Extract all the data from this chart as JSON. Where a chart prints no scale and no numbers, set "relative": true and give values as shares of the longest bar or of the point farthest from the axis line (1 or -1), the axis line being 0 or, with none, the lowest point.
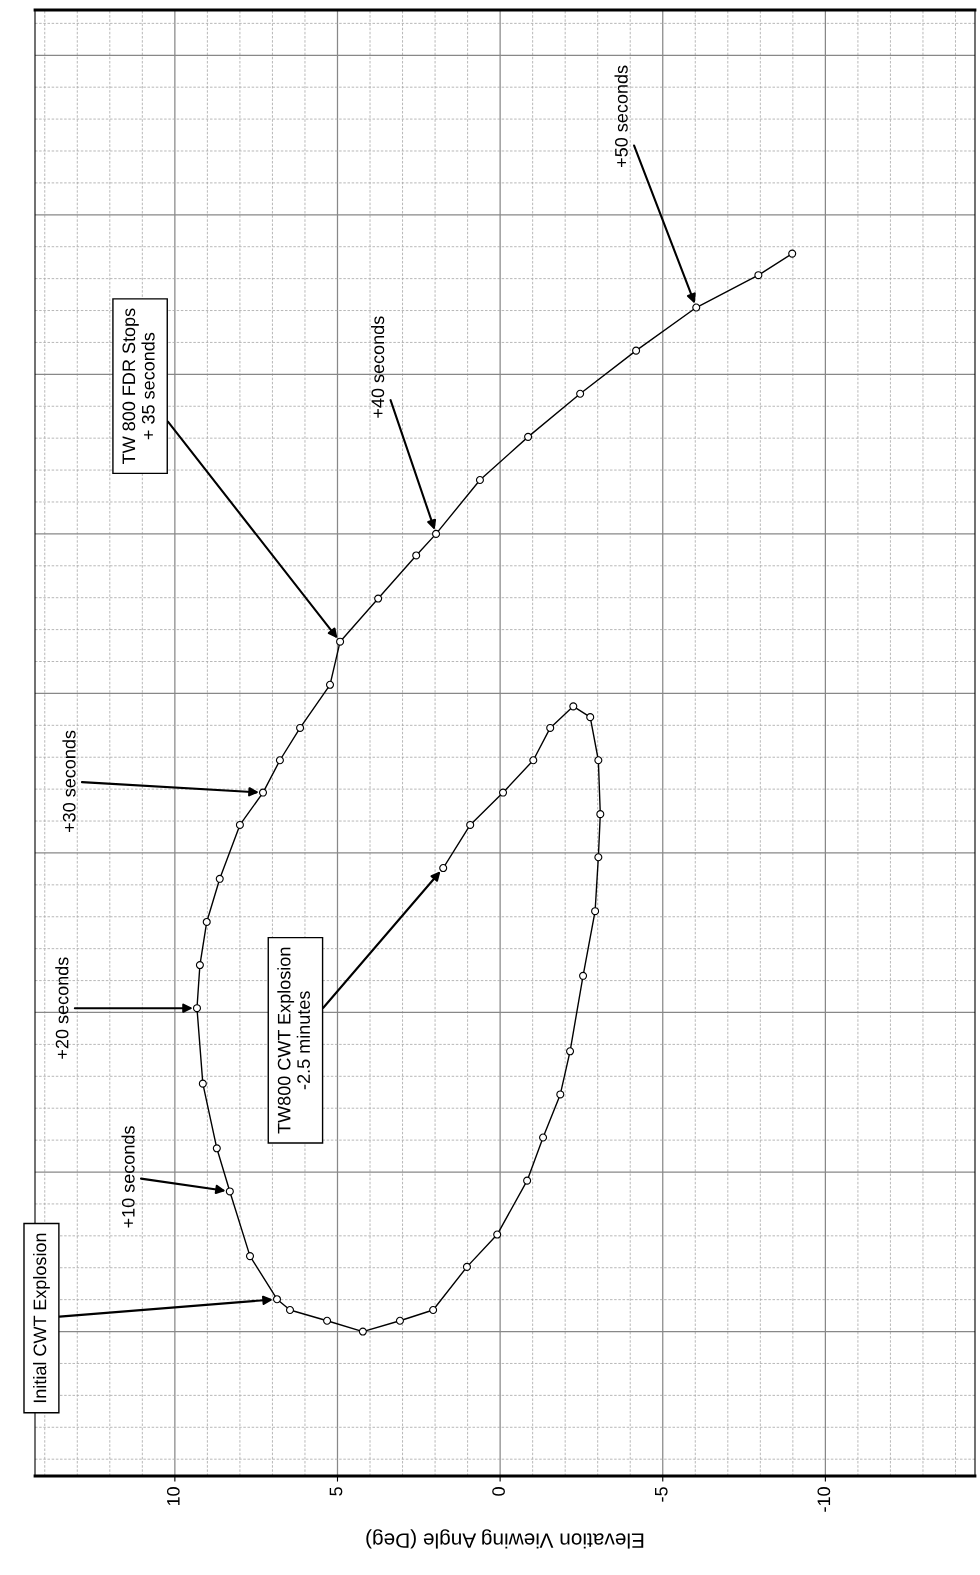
{
  "chart_data": {
    "type": "line",
    "relative": true,
    "xlabel": "Elevation Viewing Angle (Deg)",
    "xlim": [
      14.3,
      -14.6
    ],
    "xticks": [
      10,
      5,
      0,
      -5,
      -10
    ],
    "grid": true,
    "tick_labels": "x",
    "marker": "circle",
    "line_style": "solid",
    "x": [
      1.75,
      0.92,
      -0.09,
      -1.02,
      -1.54,
      -2.25,
      -2.77,
      -3.02,
      -3.08,
      -3.02,
      -2.92,
      -2.55,
      -2.15,
      -1.85,
      -1.32,
      -0.83,
      0.09,
      1.02,
      2.06,
      3.08,
      4.22,
      5.32,
      6.46,
      6.86,
      7.69,
      8.31,
      8.71,
      9.14,
      9.32,
      9.23,
      9.02,
      8.62,
      8.0,
      7.29,
      6.77,
      6.15,
      5.23,
      4.92,
      3.75,
      2.58,
      1.97,
      0.62,
      -0.86,
      -2.46,
      -4.18,
      -6.03,
      -7.94,
      -8.98
    ],
    "series": [
      {
        "color": "#000000",
        "values": [
          0.43,
          0.47,
          0.5,
          0.53,
          0.56,
          0.58,
          0.57,
          0.53,
          0.48,
          0.44,
          0.39,
          0.33,
          0.26,
          0.22,
          0.18,
          0.14,
          0.09,
          0.06,
          0.02,
          0.01,
          0.0,
          0.01,
          0.02,
          0.03,
          0.07,
          0.13,
          0.17,
          0.23,
          0.3,
          0.34,
          0.38,
          0.42,
          0.47,
          0.5,
          0.53,
          0.56,
          0.6,
          0.64,
          0.68,
          0.72,
          0.74,
          0.79,
          0.83,
          0.87,
          0.91,
          0.95,
          0.98,
          1.0
        ]
      }
    ],
    "annotations": [
      {
        "text": "Initial CWT Explosion",
        "x": 6.86,
        "y": 0.03
      },
      {
        "text": "+10 seconds",
        "x": 8.31,
        "y": 0.13
      },
      {
        "text": "+20 seconds",
        "x": 9.32,
        "y": 0.3
      },
      {
        "text": "+30 seconds",
        "x": 7.29,
        "y": 0.5
      },
      {
        "text": "TW 800 FDR Stops\n+ 35 seconds",
        "x": 4.92,
        "y": 0.64
      },
      {
        "text": "+40 seconds",
        "x": 1.97,
        "y": 0.74
      },
      {
        "text": "+50 seconds",
        "x": -6.03,
        "y": 0.95
      },
      {
        "text": "TW800 CWT Explosion\n-2.5 minutes",
        "x": 1.75,
        "y": 0.43
      }
    ]
  }
}
